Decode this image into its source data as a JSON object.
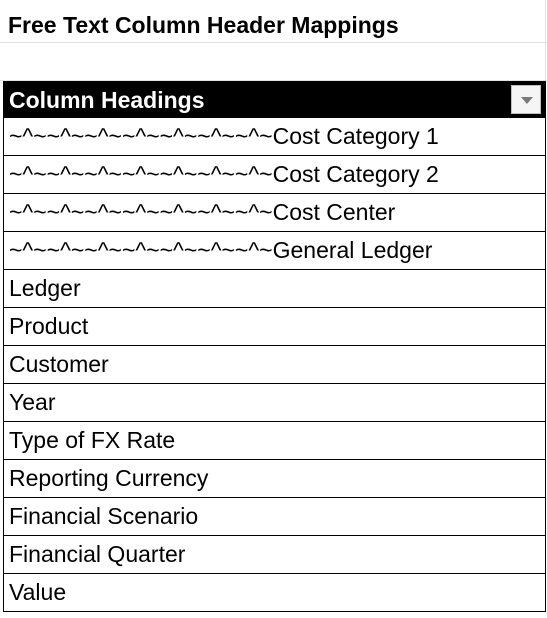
{
  "sheet": {
    "title": "Free Text Column Header Mappings",
    "table": {
      "header": "Column Headings",
      "filter_icon": "dropdown-arrow-icon",
      "rows": [
        "~^~~^~~^~~^~~^~~^~~^~Cost Category 1",
        "~^~~^~~^~~^~~^~~^~~^~Cost Category 2",
        "~^~~^~~^~~^~~^~~^~~^~Cost Center",
        "~^~~^~~^~~^~~^~~^~~^~General Ledger",
        "Ledger",
        "Product",
        "Customer",
        "Year",
        "Type of FX Rate",
        "Reporting Currency",
        "Financial Scenario",
        "Financial Quarter",
        "Value"
      ]
    },
    "colors": {
      "header_background": "#000000",
      "header_text": "#ffffff",
      "grid_line": "#e3e3e3"
    }
  }
}
